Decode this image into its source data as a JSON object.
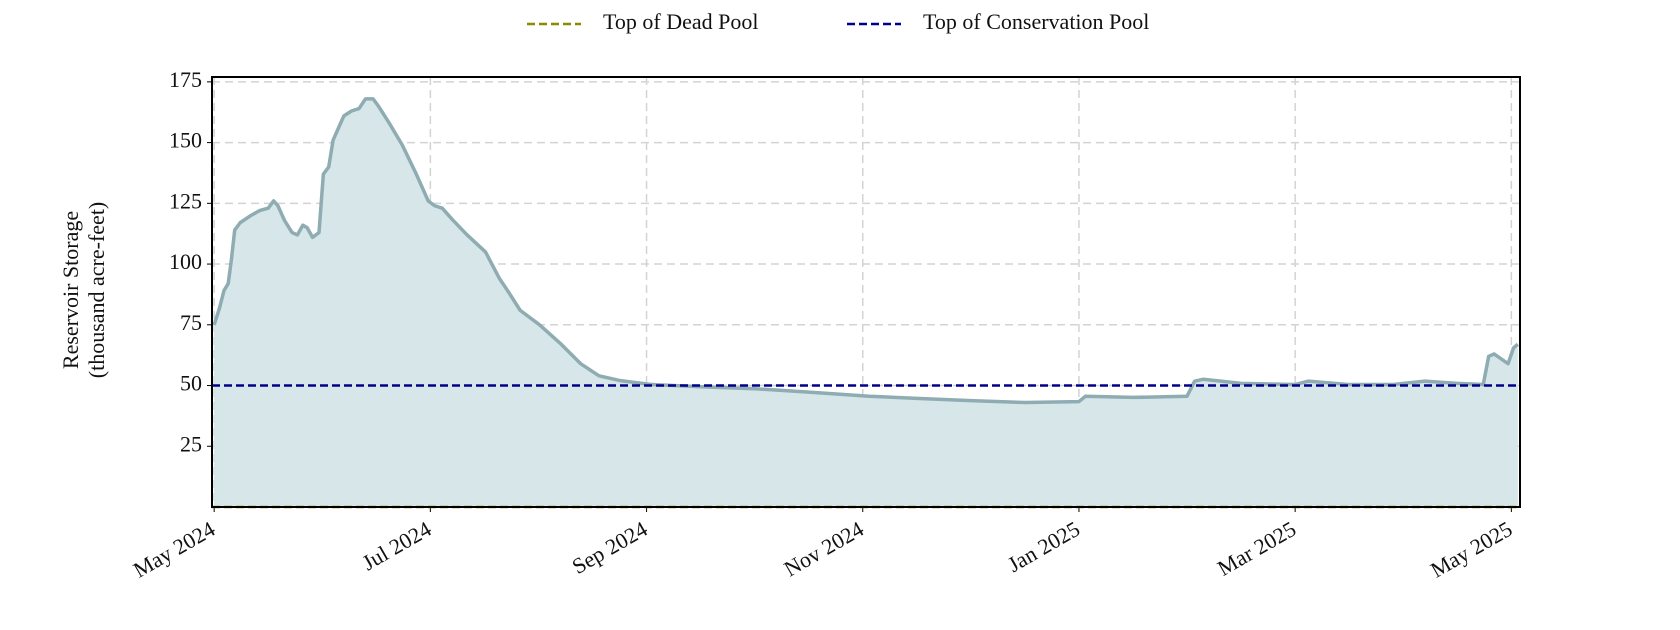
{
  "chart_data": {
    "type": "area",
    "ylabel": [
      "Reservoir Storage",
      "(thousand acre-feet)"
    ],
    "x": [
      0,
      0.05,
      0.09,
      0.13,
      0.16,
      0.19,
      0.24,
      0.34,
      0.42,
      0.5,
      0.55,
      0.59,
      0.65,
      0.72,
      0.77,
      0.82,
      0.86,
      0.91,
      0.97,
      1.01,
      1.06,
      1.1,
      1.15,
      1.2,
      1.27,
      1.34,
      1.4,
      1.47,
      1.52,
      1.62,
      1.74,
      1.87,
      1.98,
      2.04,
      2.11,
      2.21,
      2.34,
      2.51,
      2.64,
      2.73,
      2.83,
      3.01,
      3.21,
      3.39,
      3.56,
      3.76,
      4.05,
      4.5,
      5.0,
      5.5,
      6.06,
      6.5,
      7.0,
      7.5,
      8.0,
      8.06,
      8.5,
      9.0,
      9.07,
      9.15,
      9.5,
      10.0,
      10.12,
      10.5,
      10.9,
      11.2,
      11.5,
      11.74,
      11.79,
      11.84,
      11.97,
      12.02,
      12.06
    ],
    "values": [
      75,
      82,
      89,
      92,
      102,
      114,
      117,
      120,
      122,
      123,
      126,
      124,
      118,
      113,
      112,
      116,
      115,
      111,
      113,
      137,
      140,
      151,
      156,
      161,
      163,
      164,
      168,
      168,
      165,
      158,
      149,
      137,
      126,
      124,
      123,
      118,
      112,
      105,
      94,
      88,
      81,
      75,
      67,
      59,
      54,
      52,
      50.4,
      49.5,
      48.7,
      47.3,
      45.6,
      44.7,
      43.8,
      43,
      43.4,
      45.6,
      45.1,
      45.6,
      51.8,
      52.6,
      50.9,
      50.4,
      51.8,
      50.4,
      50.4,
      51.8,
      50.9,
      50.4,
      62,
      63,
      59,
      65.5,
      67
    ],
    "color": "#8eacb2",
    "fill_color": "#d6e6e9",
    "reference_lines": [
      {
        "name": "Top of Dead Pool",
        "color": "#8b8b00",
        "value": 0
      },
      {
        "name": "Top of Conservation Pool",
        "color": "#00008b",
        "value": 50
      }
    ],
    "xlim": [
      -0.02,
      12.08
    ],
    "xticks": [
      {
        "value": 0,
        "label": "May 2024"
      },
      {
        "value": 2,
        "label": "Jul 2024"
      },
      {
        "value": 4,
        "label": "Sep 2024"
      },
      {
        "value": 6,
        "label": "Nov 2024"
      },
      {
        "value": 8,
        "label": "Jan 2025"
      },
      {
        "value": 10,
        "label": "Mar 2025"
      },
      {
        "value": 12,
        "label": "May 2025"
      }
    ],
    "ylim": [
      0,
      177
    ],
    "yticks": [
      25,
      50,
      75,
      100,
      125,
      150,
      175
    ],
    "grid": true
  }
}
